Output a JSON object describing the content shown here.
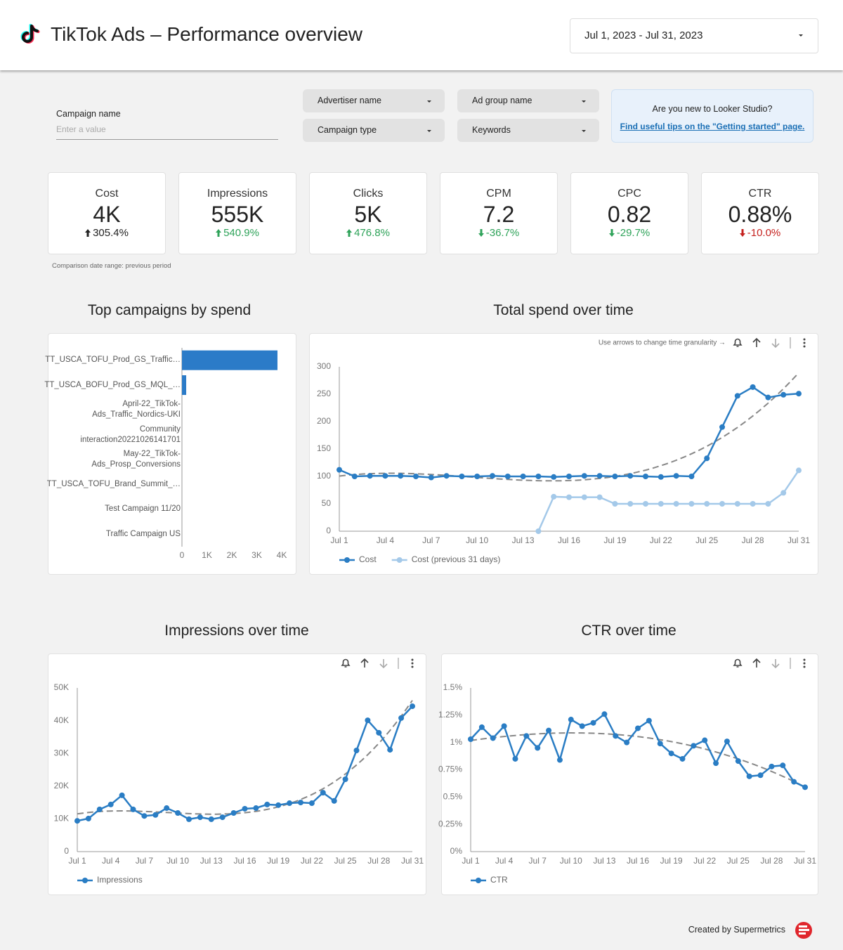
{
  "header": {
    "title": "TikTok Ads – Performance overview",
    "date_range": "Jul 1, 2023 - Jul 31, 2023"
  },
  "filters": {
    "campaign_name": {
      "label": "Campaign name",
      "placeholder": "Enter a value"
    },
    "dropdowns": [
      "Advertiser name",
      "Ad group name",
      "Campaign type",
      "Keywords"
    ]
  },
  "tip": {
    "question": "Are you new to Looker Studio?",
    "link": "Find useful tips on the \"Getting started\" page."
  },
  "scorecards": [
    {
      "label": "Cost",
      "value": "4K",
      "change": "305.4%",
      "direction": "up",
      "color": "#222222"
    },
    {
      "label": "Impressions",
      "value": "555K",
      "change": "540.9%",
      "direction": "up",
      "color": "#2fa35a"
    },
    {
      "label": "Clicks",
      "value": "5K",
      "change": "476.8%",
      "direction": "up",
      "color": "#2fa35a"
    },
    {
      "label": "CPM",
      "value": "7.2",
      "change": "-36.7%",
      "direction": "down",
      "color": "#2fa35a"
    },
    {
      "label": "CPC",
      "value": "0.82",
      "change": "-29.7%",
      "direction": "down",
      "color": "#2fa35a"
    },
    {
      "label": "CTR",
      "value": "0.88%",
      "change": "-10.0%",
      "direction": "down",
      "color": "#c5221f"
    }
  ],
  "comparison_note": "Comparison date range: previous period",
  "chart_hint": "Use arrows to change time granularity →",
  "footer": "Created by Supermetrics",
  "chart_data": [
    {
      "type": "bar",
      "orientation": "horizontal",
      "title": "Top campaigns by spend",
      "categories": [
        "TT_USCA_TOFU_Prod_GS_Traffic…",
        "TT_USCA_BOFU_Prod_GS_MQL_…",
        "April-22_TikTok-Ads_Traffic_Nordics-UKI",
        "Community interaction20221026141701",
        "May-22_TikTok-Ads_Prosp_Conversions",
        "TT_USCA_TOFU_Brand_Summit_…",
        "Test Campaign 11/20",
        "Traffic Campaign US"
      ],
      "values": [
        3830,
        170,
        0,
        0,
        0,
        0,
        0,
        0
      ],
      "color": "#2b7bc8",
      "xlim": [
        0,
        4000
      ],
      "xticks": [
        0,
        {
          "value": 1000,
          "label": "1K"
        },
        {
          "value": 2000,
          "label": "2K"
        },
        {
          "value": 3000,
          "label": "3K"
        },
        {
          "value": 4000,
          "label": "4K"
        }
      ]
    },
    {
      "type": "line",
      "title": "Total spend over time",
      "categories": [
        "Jul 1",
        null,
        null,
        "Jul 4",
        null,
        null,
        "Jul 7",
        null,
        null,
        "Jul 10",
        null,
        null,
        "Jul 13",
        null,
        null,
        "Jul 16",
        null,
        null,
        "Jul 19",
        null,
        null,
        "Jul 22",
        null,
        null,
        "Jul 25",
        null,
        null,
        "Jul 28",
        null,
        null,
        "Jul 31"
      ],
      "series": [
        {
          "name": "Cost",
          "color": "#2a7dc4",
          "trendline": true,
          "values": [
            112,
            100,
            101,
            101,
            101,
            100,
            98,
            101,
            100,
            100,
            101,
            100,
            100,
            100,
            99,
            100,
            101,
            101,
            100,
            101,
            100,
            99,
            101,
            100,
            133,
            190,
            247,
            263,
            244,
            249,
            251
          ]
        },
        {
          "name": "Cost (previous 31 days)",
          "color": "#a4c9e9",
          "trendline": false,
          "values": [
            null,
            null,
            null,
            null,
            null,
            null,
            null,
            null,
            null,
            null,
            null,
            null,
            null,
            0,
            63,
            62,
            62,
            62,
            50,
            50,
            50,
            50,
            50,
            50,
            50,
            50,
            50,
            50,
            50,
            70,
            111
          ]
        }
      ],
      "ylim": [
        0,
        300
      ],
      "yticks": [
        0,
        50,
        100,
        150,
        200,
        250,
        300
      ]
    },
    {
      "type": "line",
      "title": "Impressions over time",
      "categories": [
        "Jul 1",
        null,
        null,
        "Jul 4",
        null,
        null,
        "Jul 7",
        null,
        null,
        "Jul 10",
        null,
        null,
        "Jul 13",
        null,
        null,
        "Jul 16",
        null,
        null,
        "Jul 19",
        null,
        null,
        "Jul 22",
        null,
        null,
        "Jul 25",
        null,
        null,
        "Jul 28",
        null,
        null,
        "Jul 31"
      ],
      "series": [
        {
          "name": "Impressions",
          "color": "#2a7dc4",
          "trendline": true,
          "values": [
            9400,
            10100,
            12900,
            14400,
            17200,
            12900,
            10900,
            11200,
            13300,
            11800,
            9900,
            10500,
            9900,
            10500,
            11800,
            13100,
            13300,
            14400,
            14200,
            14800,
            15000,
            14800,
            18000,
            15500,
            22100,
            30900,
            40100,
            36300,
            31100,
            40800,
            44400
          ]
        }
      ],
      "ylim": [
        0,
        50000
      ],
      "yticks": [
        0,
        {
          "value": 10000,
          "label": "10K"
        },
        {
          "value": 20000,
          "label": "20K"
        },
        {
          "value": 30000,
          "label": "30K"
        },
        {
          "value": 40000,
          "label": "40K"
        },
        {
          "value": 50000,
          "label": "50K"
        }
      ]
    },
    {
      "type": "line",
      "title": "CTR over time",
      "categories": [
        "Jul 1",
        null,
        null,
        "Jul 4",
        null,
        null,
        "Jul 7",
        null,
        null,
        "Jul 10",
        null,
        null,
        "Jul 13",
        null,
        null,
        "Jul 16",
        null,
        null,
        "Jul 19",
        null,
        null,
        "Jul 22",
        null,
        null,
        "Jul 25",
        null,
        null,
        "Jul 28",
        null,
        null,
        "Jul 31"
      ],
      "series": [
        {
          "name": "CTR",
          "color": "#2a7dc4",
          "trendline": true,
          "values": [
            1.03,
            1.14,
            1.04,
            1.15,
            0.85,
            1.06,
            0.95,
            1.11,
            0.84,
            1.21,
            1.15,
            1.18,
            1.26,
            1.06,
            1.0,
            1.13,
            1.2,
            0.99,
            0.9,
            0.85,
            0.97,
            1.02,
            0.81,
            1.01,
            0.83,
            0.69,
            0.7,
            0.78,
            0.79,
            0.64,
            0.59
          ]
        }
      ],
      "ylim": [
        0,
        1.5
      ],
      "yticks": [
        {
          "value": 0,
          "label": "0%"
        },
        {
          "value": 0.25,
          "label": "0.25%"
        },
        {
          "value": 0.5,
          "label": "0.5%"
        },
        {
          "value": 0.75,
          "label": "0.75%"
        },
        {
          "value": 1,
          "label": "1%"
        },
        {
          "value": 1.25,
          "label": "1.25%"
        },
        {
          "value": 1.5,
          "label": "1.5%"
        }
      ]
    }
  ]
}
